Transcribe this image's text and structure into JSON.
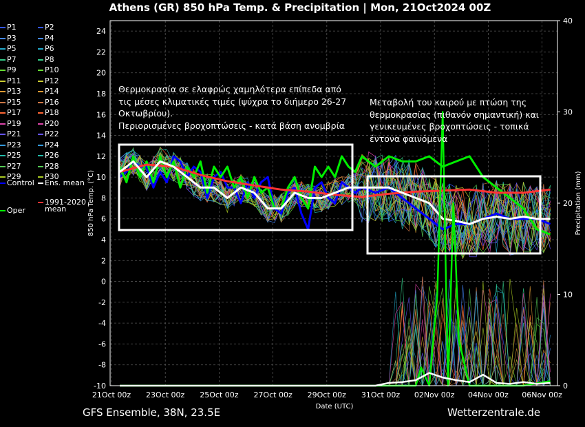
{
  "chart_data": {
    "type": "line",
    "title": "Athens  (GR)  850 hPa Temp. & Precipitation | Mon, 21Oct2024 00Z",
    "ylabel_left": "850 hPa Temp. (°C)",
    "ylabel_right": "Precipitation (mm)",
    "xlabel": "Date (UTC)",
    "ylim_left": [
      -10,
      25
    ],
    "ylim_right": [
      0,
      40
    ],
    "xlim_days": [
      0,
      16
    ],
    "x_tick_labels": [
      "21Oct 00z",
      "23Oct 00z",
      "25Oct 00z",
      "27Oct 00z",
      "29Oct 00z",
      "31Oct 00z",
      "02Nov 00z",
      "04Nov 00z",
      "06Nov 00z"
    ],
    "y_ticks_left": [
      -10,
      -8,
      -6,
      -4,
      -2,
      0,
      2,
      4,
      6,
      8,
      10,
      12,
      14,
      16,
      18,
      20,
      22,
      24
    ],
    "y_ticks_right": [
      0,
      10,
      20,
      30,
      40
    ],
    "grid": true,
    "legend_placement": "left",
    "legend": {
      "perturbations": [
        "P1",
        "P2",
        "P3",
        "P4",
        "P5",
        "P6",
        "P7",
        "P8",
        "P9",
        "P10",
        "P11",
        "P12",
        "P13",
        "P14",
        "P15",
        "P16",
        "P17",
        "P18",
        "P19",
        "P20",
        "P21",
        "P22",
        "P23",
        "P24",
        "P25",
        "P26",
        "P27",
        "P28",
        "P29",
        "P30"
      ],
      "pert_colors": [
        "#3355ff",
        "#3355ff",
        "#4488ff",
        "#4488ff",
        "#22aacc",
        "#22aacc",
        "#33cc88",
        "#33cc88",
        "#66dd33",
        "#66dd33",
        "#cccc33",
        "#cccc33",
        "#dd9933",
        "#dd9933",
        "#cc7744",
        "#cc7744",
        "#ff6633",
        "#ff6633",
        "#dd44aa",
        "#dd44aa",
        "#6655ff",
        "#6655ff",
        "#3399dd",
        "#3399dd",
        "#22bbaa",
        "#22bbaa",
        "#55cc55",
        "#55cc55",
        "#aacc22",
        "#aacc22"
      ],
      "control": "Control",
      "ens_mean": "Ens. mean",
      "oper": "Oper",
      "clim_line1": "1991-2020",
      "clim_line2": "mean"
    },
    "series_colors": {
      "control": "#0000ff",
      "ens_mean": "#ffffff",
      "oper": "#00ee00",
      "clim": "#ff3333"
    },
    "series": [
      {
        "name": "Control",
        "x": [
          0,
          0.25,
          0.5,
          0.75,
          1,
          1.25,
          1.5,
          1.75,
          2,
          2.25,
          2.5,
          2.75,
          3,
          3.25,
          3.5,
          3.75,
          4,
          4.25,
          4.5,
          4.75,
          5,
          5.25,
          5.5,
          5.75,
          6,
          6.25,
          6.5,
          6.75,
          7,
          7.25,
          7.5,
          7.75,
          8,
          8.25,
          8.5,
          8.75,
          9,
          9.5,
          10,
          10.5,
          11,
          11.5,
          12,
          12.5,
          13,
          13.5,
          14,
          14.5,
          15,
          15.5,
          16
        ],
        "values": [
          10,
          10.5,
          11.5,
          11,
          11,
          9,
          10.5,
          9.5,
          12,
          11.5,
          10,
          11,
          10.5,
          8,
          10,
          10.5,
          9,
          9,
          7.5,
          9.5,
          8,
          9.5,
          10,
          7,
          6.5,
          8.5,
          9,
          6.5,
          5,
          9,
          9.5,
          8,
          7.5,
          9.5,
          9,
          8.5,
          9,
          8.5,
          9,
          8,
          7,
          6,
          5,
          5.5,
          5.5,
          6,
          6.5,
          6,
          6,
          6,
          5.5
        ]
      },
      {
        "name": "Ens. mean",
        "x": [
          0,
          0.5,
          1,
          1.5,
          2,
          2.5,
          3,
          3.5,
          4,
          4.5,
          5,
          5.5,
          6,
          6.5,
          7,
          7.5,
          8,
          8.5,
          9,
          9.5,
          10,
          10.5,
          11,
          11.5,
          12,
          12.5,
          13,
          13.5,
          14,
          14.5,
          15,
          15.5,
          16
        ],
        "values": [
          10.5,
          11.5,
          10,
          11.5,
          11,
          10,
          9,
          9,
          8,
          9,
          8.5,
          7,
          7,
          8.5,
          8,
          8,
          8.5,
          9,
          9,
          9,
          9,
          8.5,
          8,
          7.5,
          6,
          5.8,
          5.5,
          6,
          6.2,
          6,
          6.2,
          6,
          6
        ]
      },
      {
        "name": "Oper",
        "x": [
          0,
          0.25,
          0.5,
          0.75,
          1,
          1.25,
          1.5,
          1.75,
          2,
          2.25,
          2.5,
          2.75,
          3,
          3.25,
          3.5,
          3.75,
          4,
          4.25,
          4.5,
          4.75,
          5,
          5.25,
          5.5,
          5.75,
          6,
          6.25,
          6.5,
          6.75,
          7,
          7.25,
          7.5,
          7.75,
          8,
          8.25,
          8.5,
          8.75,
          9,
          9.5,
          10,
          10.5,
          11,
          11.5,
          12,
          12.5,
          13,
          13.5,
          14,
          14.5,
          15,
          15.5,
          16
        ],
        "values": [
          11,
          9.5,
          12,
          10,
          11.5,
          9.5,
          12,
          10,
          11.5,
          9,
          11,
          10,
          11.5,
          8.5,
          11,
          10,
          11,
          9,
          10,
          8,
          10,
          8.5,
          9,
          7,
          7,
          9,
          10,
          8,
          7,
          11,
          10,
          11,
          10,
          12,
          11,
          10.5,
          12,
          11,
          12,
          11.5,
          11.5,
          12,
          11,
          11.5,
          12,
          10,
          9,
          8,
          7,
          5,
          4.5
        ]
      },
      {
        "name": "1991-2020 mean",
        "x": [
          0,
          1,
          2,
          3,
          4,
          5,
          6,
          7,
          8,
          9,
          10,
          11,
          12,
          13,
          14,
          15,
          16
        ],
        "values": [
          10.5,
          11.2,
          11,
          10.2,
          9.6,
          9.2,
          8.8,
          8.6,
          8.3,
          8.1,
          8.4,
          8.6,
          8.7,
          8.8,
          8.5,
          8.5,
          8.8
        ]
      },
      {
        "name": "Oper precipitation",
        "axis": "right",
        "x": [
          0,
          9.5,
          10,
          10.5,
          11,
          11.2,
          11.5,
          11.8,
          12,
          12.2,
          12.4,
          12.6,
          13,
          13.5,
          14,
          14.5,
          15,
          16
        ],
        "values": [
          0,
          0,
          0,
          0,
          0,
          2,
          0,
          10,
          30,
          0,
          20,
          5,
          0,
          0,
          0,
          0,
          0,
          0.5
        ]
      },
      {
        "name": "Ens. mean precipitation",
        "axis": "right",
        "x": [
          0,
          9.5,
          10,
          10.5,
          11,
          11.5,
          12,
          12.5,
          13,
          13.5,
          14,
          14.5,
          15,
          15.5,
          16
        ],
        "values": [
          0,
          0,
          0.3,
          0.4,
          0.6,
          1.4,
          0.9,
          0.6,
          0.4,
          1.2,
          0.3,
          0.2,
          0.4,
          0.2,
          0.3
        ]
      }
    ]
  },
  "annotations": {
    "left_box_text": [
      "Θερμοκρασία σε ελαφρώς χαμηλότερα επίπεδα από",
      "τις μέσες κλιματικές τιμές (ψύχρα το διήμερο 26-27",
      "Οκτωβρίου).",
      "Περιορισμένες βροχοπτώσεις - κατά βάση ανομβρία"
    ],
    "right_box_text": [
      "Μεταβολή του καιρού με πτώση της",
      "θερμοκρασίας (πιθανόν σημαντική) και",
      "γενικευμένες βροχοπτώσεις - τοπικά",
      "έντονα φαινόμενα"
    ]
  },
  "footer": {
    "left": "GFS Ensemble, 38N, 23.5E",
    "right": "Wetterzentrale.de"
  }
}
